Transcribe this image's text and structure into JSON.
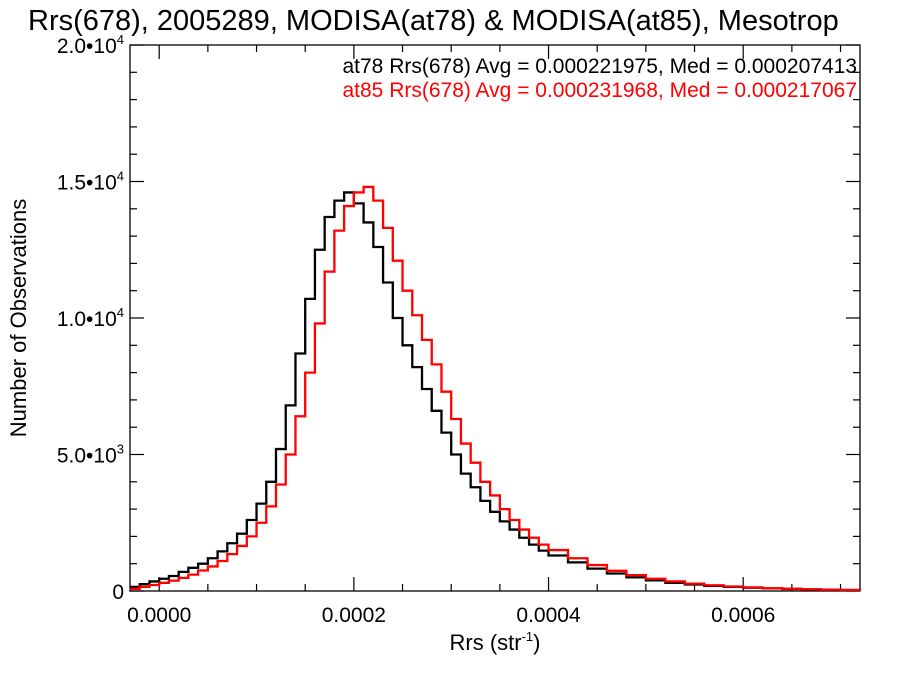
{
  "chart_data": {
    "type": "line",
    "title": "Rrs(678), 2005289, MODISA(at78) & MODISA(at85), Mesotrop",
    "xlabel": "Rrs (str",
    "xlabel_sup": "-1",
    "xlabel_close": ")",
    "ylabel": "Number of Observations",
    "xlim": [
      -3e-05,
      0.00072
    ],
    "ylim": [
      0,
      20000
    ],
    "x_ticks": [
      {
        "value": 0.0,
        "label": "0.0000"
      },
      {
        "value": 0.0002,
        "label": "0.0002"
      },
      {
        "value": 0.0004,
        "label": "0.0004"
      },
      {
        "value": 0.0006,
        "label": "0.0006"
      }
    ],
    "y_ticks": [
      {
        "value": 0,
        "label": "0",
        "sup": ""
      },
      {
        "value": 5000,
        "label": "5.0•10",
        "sup": "3"
      },
      {
        "value": 10000,
        "label": "1.0•10",
        "sup": "4"
      },
      {
        "value": 15000,
        "label": "1.5•10",
        "sup": "4"
      },
      {
        "value": 20000,
        "label": "2.0•10",
        "sup": "4"
      }
    ],
    "grid": false,
    "legend_placement": "top-right",
    "series": [
      {
        "name": "at78",
        "color": "#000000",
        "annotation": "at78 Rrs(678) Avg = 0.000221975, Med = 0.000207413",
        "x": [
          -3e-05,
          -2e-05,
          -1e-05,
          0.0,
          1e-05,
          2e-05,
          3e-05,
          4e-05,
          5e-05,
          6e-05,
          7e-05,
          8e-05,
          9e-05,
          0.0001,
          0.00011,
          0.00012,
          0.00013,
          0.00014,
          0.00015,
          0.00016,
          0.00017,
          0.00018,
          0.00019,
          0.0002,
          0.00021,
          0.00022,
          0.00023,
          0.00024,
          0.00025,
          0.00026,
          0.00027,
          0.00028,
          0.00029,
          0.0003,
          0.00031,
          0.00032,
          0.00033,
          0.00034,
          0.00035,
          0.00036,
          0.00037,
          0.00038,
          0.00039,
          0.0004,
          0.00042,
          0.00044,
          0.00046,
          0.00048,
          0.0005,
          0.00052,
          0.00054,
          0.00056,
          0.00058,
          0.0006,
          0.00062,
          0.00064,
          0.00066,
          0.00068,
          0.0007,
          0.00072
        ],
        "y": [
          150,
          250,
          350,
          450,
          550,
          700,
          850,
          1000,
          1200,
          1450,
          1750,
          2100,
          2600,
          3200,
          4000,
          5200,
          6800,
          8700,
          10700,
          12500,
          13700,
          14300,
          14600,
          14200,
          13500,
          12600,
          11300,
          10000,
          9000,
          8200,
          7400,
          6600,
          5800,
          5000,
          4300,
          3800,
          3300,
          2900,
          2550,
          2250,
          1950,
          1700,
          1480,
          1300,
          1050,
          820,
          640,
          500,
          390,
          300,
          240,
          190,
          150,
          120,
          95,
          75,
          60,
          45,
          35,
          25
        ]
      },
      {
        "name": "at85",
        "color": "#ff0000",
        "annotation": "at85 Rrs(678) Avg = 0.000231968, Med = 0.000217067",
        "x": [
          -3e-05,
          -2e-05,
          -1e-05,
          0.0,
          1e-05,
          2e-05,
          3e-05,
          4e-05,
          5e-05,
          6e-05,
          7e-05,
          8e-05,
          9e-05,
          0.0001,
          0.00011,
          0.00012,
          0.00013,
          0.00014,
          0.00015,
          0.00016,
          0.00017,
          0.00018,
          0.00019,
          0.0002,
          0.00021,
          0.00022,
          0.00023,
          0.00024,
          0.00025,
          0.00026,
          0.00027,
          0.00028,
          0.00029,
          0.0003,
          0.00031,
          0.00032,
          0.00033,
          0.00034,
          0.00035,
          0.00036,
          0.00037,
          0.00038,
          0.00039,
          0.0004,
          0.00042,
          0.00044,
          0.00046,
          0.00048,
          0.0005,
          0.00052,
          0.00054,
          0.00056,
          0.00058,
          0.0006,
          0.00062,
          0.00064,
          0.00066,
          0.00068,
          0.0007,
          0.00072
        ],
        "y": [
          80,
          150,
          220,
          300,
          380,
          480,
          600,
          750,
          900,
          1100,
          1350,
          1650,
          2000,
          2500,
          3100,
          3900,
          5000,
          6400,
          8000,
          9800,
          11700,
          13200,
          14100,
          14600,
          14800,
          14300,
          13300,
          12100,
          11000,
          10100,
          9200,
          8300,
          7300,
          6300,
          5400,
          4700,
          4000,
          3500,
          3000,
          2600,
          2250,
          1950,
          1700,
          1500,
          1200,
          950,
          740,
          580,
          450,
          350,
          270,
          210,
          165,
          130,
          100,
          80,
          62,
          48,
          37,
          27
        ]
      }
    ]
  }
}
